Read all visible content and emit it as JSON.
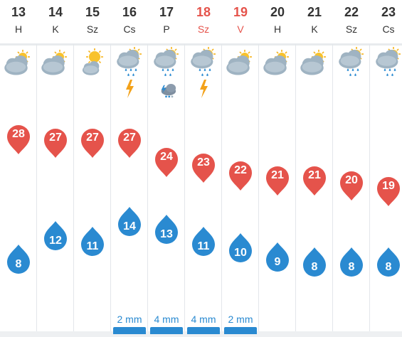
{
  "days": [
    {
      "day": "13",
      "dow": "H",
      "weekend": false,
      "weather": "partly-cloudy-icon",
      "max": "28",
      "min": "8",
      "precip": ""
    },
    {
      "day": "14",
      "dow": "K",
      "weekend": false,
      "weather": "partly-cloudy-icon",
      "max": "27",
      "min": "12",
      "precip": ""
    },
    {
      "day": "15",
      "dow": "Sz",
      "weekend": false,
      "weather": "sun-cloud-icon",
      "max": "27",
      "min": "11",
      "precip": ""
    },
    {
      "day": "16",
      "dow": "Cs",
      "weekend": false,
      "weather": "rain-thunder-icon",
      "max": "27",
      "min": "14",
      "precip": "2 mm"
    },
    {
      "day": "17",
      "dow": "P",
      "weekend": false,
      "weather": "rain-hail-storm-icon",
      "max": "24",
      "min": "13",
      "precip": "4 mm"
    },
    {
      "day": "18",
      "dow": "Sz",
      "weekend": true,
      "weather": "rain-thunder-icon",
      "max": "23",
      "min": "11",
      "precip": "4 mm"
    },
    {
      "day": "19",
      "dow": "V",
      "weekend": true,
      "weather": "partly-cloudy-icon",
      "max": "22",
      "min": "10",
      "precip": "2 mm"
    },
    {
      "day": "20",
      "dow": "H",
      "weekend": false,
      "weather": "partly-cloudy-icon",
      "max": "21",
      "min": "9",
      "precip": ""
    },
    {
      "day": "21",
      "dow": "K",
      "weekend": false,
      "weather": "partly-cloudy-icon",
      "max": "21",
      "min": "8",
      "precip": ""
    },
    {
      "day": "22",
      "dow": "Sz",
      "weekend": false,
      "weather": "rain-cloud-icon",
      "max": "20",
      "min": "8",
      "precip": ""
    },
    {
      "day": "23",
      "dow": "Cs",
      "weekend": false,
      "weather": "rain-cloud-icon",
      "max": "19",
      "min": "8",
      "precip": ""
    }
  ],
  "colors": {
    "max": "#e5534b",
    "min": "#2a8ad1",
    "weekend": "#e5534b",
    "text": "#333333"
  }
}
